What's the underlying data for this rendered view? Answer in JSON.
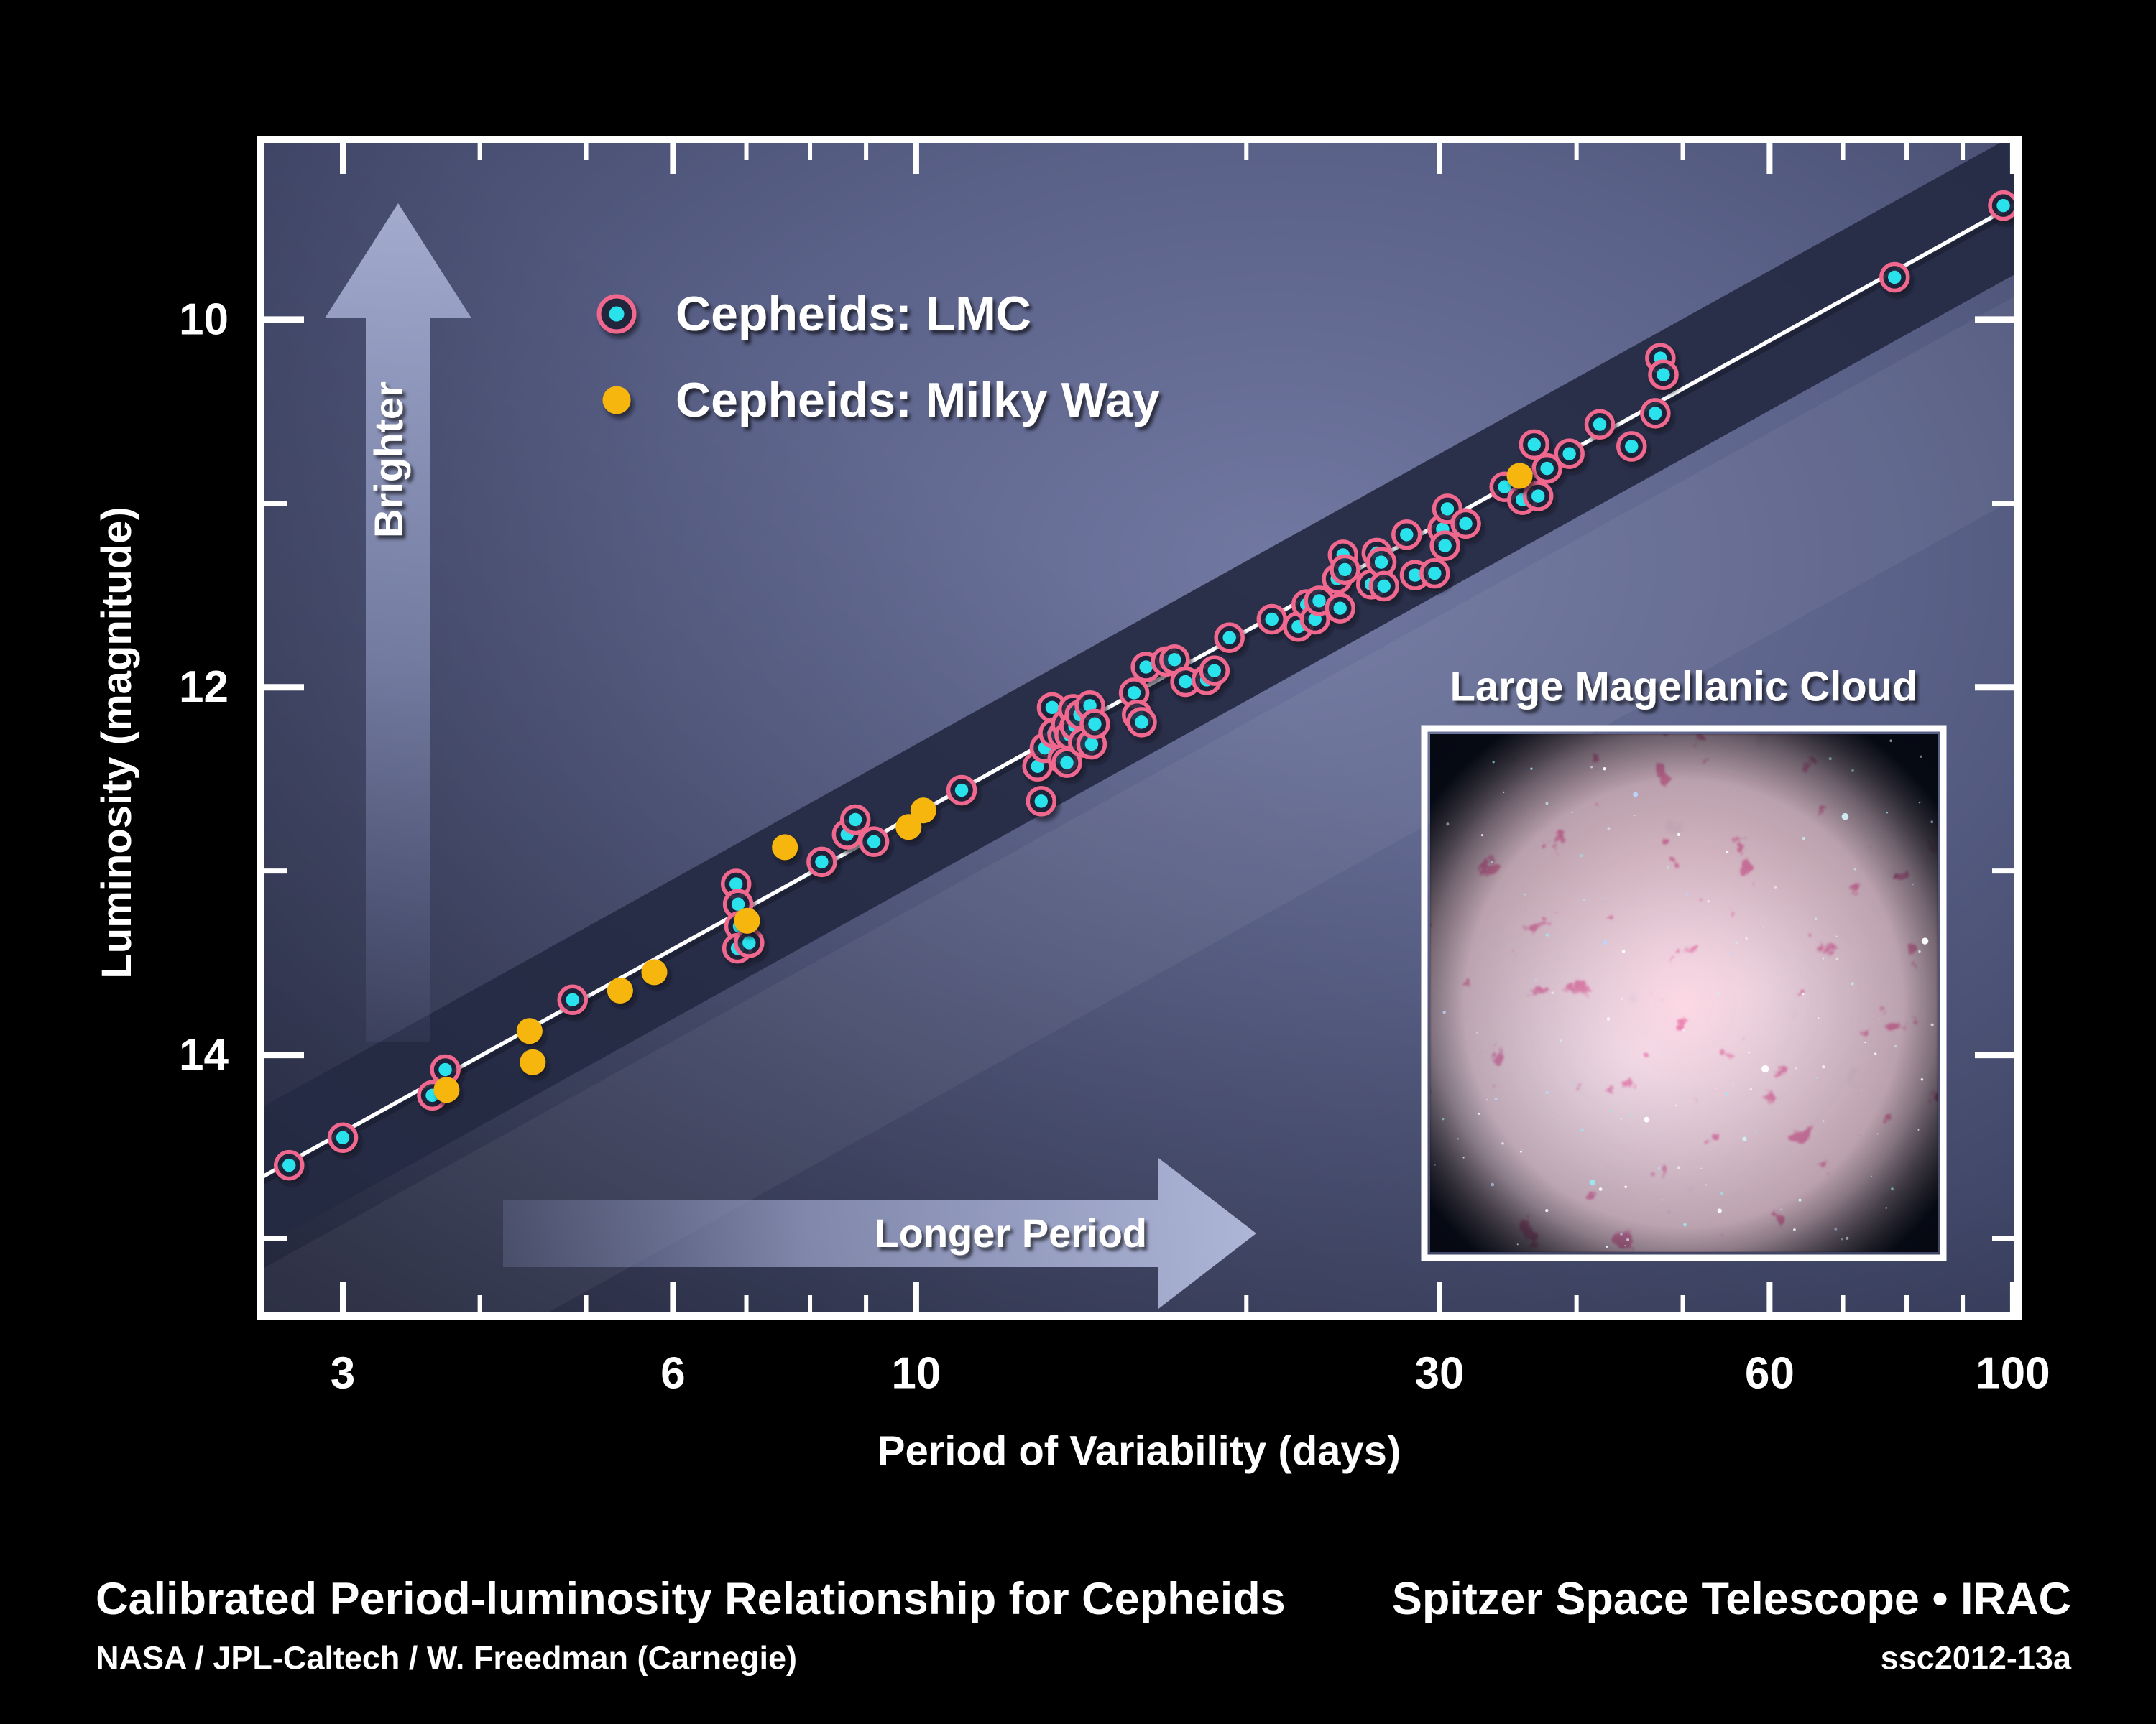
{
  "chart_data": {
    "type": "scatter",
    "title": "Calibrated Period-luminosity Relationship for Cepheids",
    "xlabel": "Period of Variability (days)",
    "ylabel": "Luminosity (magnitude)",
    "x_scale": "log",
    "y_axis_direction": "inverted (smaller magnitude = brighter = up)",
    "xlim": [
      2.527,
      100.8
    ],
    "ylim": [
      15.42,
      9.02
    ],
    "x_ticks_labeled": [
      3,
      6,
      10,
      30,
      60,
      100
    ],
    "x_ticks_minor": [
      4,
      5,
      7,
      8,
      9,
      20,
      40,
      50,
      70,
      80,
      90
    ],
    "y_ticks_labeled": [
      10,
      12,
      14
    ],
    "y_ticks_minor": [
      11,
      13,
      15
    ],
    "grid": false,
    "legend_position": "upper-left inside plot",
    "trend_line": {
      "intercept_mag": 16.0,
      "slope_mag_per_dex": -3.31,
      "band_halfwidth_mag": 0.38
    },
    "series": [
      {
        "name": "Cepheids: LMC",
        "marker": "cyan dot in pink ring",
        "points": [
          [
            2.68,
            14.6
          ],
          [
            3.0,
            14.45
          ],
          [
            3.62,
            14.22
          ],
          [
            3.72,
            14.08
          ],
          [
            4.86,
            13.7
          ],
          [
            6.85,
            13.07
          ],
          [
            6.88,
            13.18
          ],
          [
            6.9,
            13.3
          ],
          [
            6.87,
            13.42
          ],
          [
            7.04,
            13.39
          ],
          [
            8.2,
            12.95
          ],
          [
            8.65,
            12.8
          ],
          [
            8.8,
            12.72
          ],
          [
            9.15,
            12.84
          ],
          [
            11.0,
            12.56
          ],
          [
            12.9,
            12.43
          ],
          [
            13.0,
            12.62
          ],
          [
            13.1,
            12.33
          ],
          [
            13.3,
            12.11
          ],
          [
            13.35,
            12.25
          ],
          [
            13.6,
            12.26
          ],
          [
            13.6,
            12.39
          ],
          [
            13.7,
            12.2
          ],
          [
            13.72,
            12.41
          ],
          [
            13.8,
            12.26
          ],
          [
            13.9,
            12.12
          ],
          [
            13.95,
            12.21
          ],
          [
            14.1,
            12.15
          ],
          [
            14.2,
            12.3
          ],
          [
            14.4,
            12.1
          ],
          [
            14.45,
            12.31
          ],
          [
            14.55,
            12.2
          ],
          [
            15.8,
            12.03
          ],
          [
            15.9,
            12.15
          ],
          [
            16.05,
            12.19
          ],
          [
            16.2,
            11.89
          ],
          [
            16.9,
            11.86
          ],
          [
            17.2,
            11.85
          ],
          [
            17.6,
            11.97
          ],
          [
            18.4,
            11.96
          ],
          [
            18.7,
            11.91
          ],
          [
            19.3,
            11.73
          ],
          [
            21.1,
            11.63
          ],
          [
            22.3,
            11.67
          ],
          [
            22.7,
            11.55
          ],
          [
            23.1,
            11.63
          ],
          [
            23.3,
            11.53
          ],
          [
            24.2,
            11.41
          ],
          [
            24.35,
            11.57
          ],
          [
            24.5,
            11.28
          ],
          [
            24.6,
            11.36
          ],
          [
            26.0,
            11.44
          ],
          [
            26.3,
            11.27
          ],
          [
            26.55,
            11.32
          ],
          [
            26.7,
            11.45
          ],
          [
            28.0,
            11.17
          ],
          [
            28.5,
            11.39
          ],
          [
            29.7,
            11.38
          ],
          [
            30.2,
            11.14
          ],
          [
            30.35,
            11.23
          ],
          [
            30.5,
            11.03
          ],
          [
            31.7,
            11.11
          ],
          [
            34.4,
            10.91
          ],
          [
            35.7,
            10.98
          ],
          [
            36.6,
            10.68
          ],
          [
            36.9,
            10.96
          ],
          [
            37.6,
            10.81
          ],
          [
            39.4,
            10.73
          ],
          [
            42.0,
            10.57
          ],
          [
            44.9,
            10.69
          ],
          [
            47.2,
            10.51
          ],
          [
            47.7,
            10.21
          ],
          [
            48.0,
            10.3
          ],
          [
            78.0,
            9.77
          ],
          [
            98.0,
            9.38
          ]
        ]
      },
      {
        "name": "Cepheids: Milky Way",
        "marker": "yellow dot",
        "points": [
          [
            3.73,
            14.19
          ],
          [
            4.44,
            13.87
          ],
          [
            4.47,
            14.04
          ],
          [
            5.37,
            13.65
          ],
          [
            5.77,
            13.55
          ],
          [
            7.01,
            13.27
          ],
          [
            7.59,
            12.87
          ],
          [
            9.84,
            12.76
          ],
          [
            10.15,
            12.67
          ],
          [
            35.5,
            10.85
          ]
        ]
      }
    ]
  },
  "legend": {
    "items": [
      {
        "label": "Cepheids: LMC",
        "marker": "cyan-dot-pink-ring"
      },
      {
        "label": "Cepheids: Milky Way",
        "marker": "yellow-dot"
      }
    ]
  },
  "annotations": {
    "brighter": "Brighter",
    "longer_period": "Longer Period"
  },
  "inset": {
    "title": "Large Magellanic Cloud",
    "description": "infrared image of the LMC galaxy: pink dust clouds over a teal stellar glow"
  },
  "footer": {
    "headline": "Calibrated Period-luminosity Relationship for Cepheids",
    "credit": "NASA / JPL-Caltech / W. Freedman (Carnegie)",
    "project": "Spitzer Space Telescope • IRAC",
    "release_id": "ssc2012-13a"
  },
  "colors": {
    "background": "#000000",
    "plot_gradient": [
      "#7178A1",
      "#5A6188",
      "#424869",
      "#282D49"
    ],
    "band": "#252A43",
    "trend_line": "#FFFFFF",
    "lmc_dot": "#29E2EC",
    "lmc_ring": "#F1688F",
    "marker_halo": "#1F2439",
    "milkyway_dot": "#F6B60B",
    "arrow": "#9AA3CE",
    "text": "#FFFFFF"
  }
}
